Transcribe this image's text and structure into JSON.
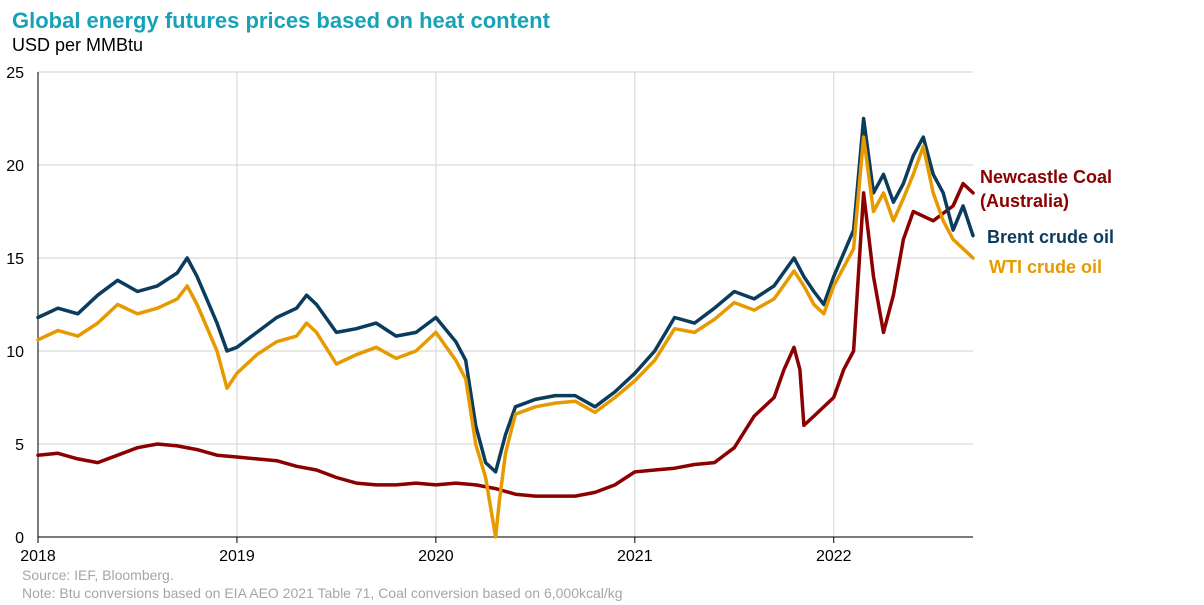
{
  "header": {
    "title": "Global energy futures prices based on heat content",
    "subtitle": "USD per MMBtu"
  },
  "footer": {
    "source": "Source: IEF, Bloomberg.",
    "note": "Note: Btu conversions based on EIA AEO 2021 Table 71, Coal conversion based on 6,000kcal/kg"
  },
  "chart_data": {
    "type": "line",
    "title": "Global energy futures prices based on heat content",
    "ylabel": "USD per MMBtu",
    "xlabel": "",
    "xlim": [
      2018.0,
      2022.7
    ],
    "ylim": [
      0,
      25
    ],
    "x_ticks": [
      "2018",
      "2019",
      "2020",
      "2021",
      "2022"
    ],
    "y_ticks": [
      "0",
      "5",
      "10",
      "15",
      "20",
      "25"
    ],
    "grid": true,
    "legend_position": "right",
    "series": [
      {
        "name": "Newcastle Coal (Australia)",
        "label_lines": [
          "Newcastle Coal",
          "(Australia)"
        ],
        "color": "#8B0000",
        "points": [
          [
            2018.0,
            4.4
          ],
          [
            2018.1,
            4.5
          ],
          [
            2018.2,
            4.2
          ],
          [
            2018.3,
            4.0
          ],
          [
            2018.4,
            4.4
          ],
          [
            2018.5,
            4.8
          ],
          [
            2018.6,
            5.0
          ],
          [
            2018.7,
            4.9
          ],
          [
            2018.8,
            4.7
          ],
          [
            2018.9,
            4.4
          ],
          [
            2019.0,
            4.3
          ],
          [
            2019.1,
            4.2
          ],
          [
            2019.2,
            4.1
          ],
          [
            2019.3,
            3.8
          ],
          [
            2019.4,
            3.6
          ],
          [
            2019.5,
            3.2
          ],
          [
            2019.6,
            2.9
          ],
          [
            2019.7,
            2.8
          ],
          [
            2019.8,
            2.8
          ],
          [
            2019.9,
            2.9
          ],
          [
            2020.0,
            2.8
          ],
          [
            2020.1,
            2.9
          ],
          [
            2020.2,
            2.8
          ],
          [
            2020.3,
            2.6
          ],
          [
            2020.4,
            2.3
          ],
          [
            2020.5,
            2.2
          ],
          [
            2020.6,
            2.2
          ],
          [
            2020.7,
            2.2
          ],
          [
            2020.8,
            2.4
          ],
          [
            2020.9,
            2.8
          ],
          [
            2021.0,
            3.5
          ],
          [
            2021.1,
            3.6
          ],
          [
            2021.2,
            3.7
          ],
          [
            2021.3,
            3.9
          ],
          [
            2021.4,
            4.0
          ],
          [
            2021.5,
            4.8
          ],
          [
            2021.6,
            6.5
          ],
          [
            2021.7,
            7.5
          ],
          [
            2021.75,
            9.0
          ],
          [
            2021.8,
            10.2
          ],
          [
            2021.83,
            9.0
          ],
          [
            2021.85,
            6.0
          ],
          [
            2021.9,
            6.5
          ],
          [
            2022.0,
            7.5
          ],
          [
            2022.05,
            9.0
          ],
          [
            2022.1,
            10.0
          ],
          [
            2022.15,
            18.5
          ],
          [
            2022.2,
            14.0
          ],
          [
            2022.25,
            11.0
          ],
          [
            2022.3,
            13.0
          ],
          [
            2022.35,
            16.0
          ],
          [
            2022.4,
            17.5
          ],
          [
            2022.5,
            17.0
          ],
          [
            2022.6,
            17.8
          ],
          [
            2022.65,
            19.0
          ],
          [
            2022.7,
            18.5
          ]
        ]
      },
      {
        "name": "Brent crude oil",
        "label_lines": [
          "Brent crude oil"
        ],
        "color": "#0B3C5D",
        "points": [
          [
            2018.0,
            11.8
          ],
          [
            2018.1,
            12.3
          ],
          [
            2018.2,
            12.0
          ],
          [
            2018.3,
            13.0
          ],
          [
            2018.4,
            13.8
          ],
          [
            2018.5,
            13.2
          ],
          [
            2018.6,
            13.5
          ],
          [
            2018.7,
            14.2
          ],
          [
            2018.75,
            15.0
          ],
          [
            2018.8,
            14.0
          ],
          [
            2018.9,
            11.5
          ],
          [
            2018.95,
            10.0
          ],
          [
            2019.0,
            10.2
          ],
          [
            2019.1,
            11.0
          ],
          [
            2019.2,
            11.8
          ],
          [
            2019.3,
            12.3
          ],
          [
            2019.35,
            13.0
          ],
          [
            2019.4,
            12.5
          ],
          [
            2019.5,
            11.0
          ],
          [
            2019.6,
            11.2
          ],
          [
            2019.7,
            11.5
          ],
          [
            2019.8,
            10.8
          ],
          [
            2019.9,
            11.0
          ],
          [
            2020.0,
            11.8
          ],
          [
            2020.1,
            10.5
          ],
          [
            2020.15,
            9.5
          ],
          [
            2020.2,
            6.0
          ],
          [
            2020.25,
            4.0
          ],
          [
            2020.3,
            3.5
          ],
          [
            2020.35,
            5.5
          ],
          [
            2020.4,
            7.0
          ],
          [
            2020.5,
            7.4
          ],
          [
            2020.6,
            7.6
          ],
          [
            2020.7,
            7.6
          ],
          [
            2020.8,
            7.0
          ],
          [
            2020.9,
            7.8
          ],
          [
            2021.0,
            8.8
          ],
          [
            2021.1,
            10.0
          ],
          [
            2021.2,
            11.8
          ],
          [
            2021.3,
            11.5
          ],
          [
            2021.4,
            12.3
          ],
          [
            2021.5,
            13.2
          ],
          [
            2021.6,
            12.8
          ],
          [
            2021.7,
            13.5
          ],
          [
            2021.8,
            15.0
          ],
          [
            2021.85,
            14.0
          ],
          [
            2021.9,
            13.2
          ],
          [
            2021.95,
            12.5
          ],
          [
            2022.0,
            14.0
          ],
          [
            2022.1,
            16.5
          ],
          [
            2022.15,
            22.5
          ],
          [
            2022.2,
            18.5
          ],
          [
            2022.25,
            19.5
          ],
          [
            2022.3,
            18.0
          ],
          [
            2022.35,
            19.0
          ],
          [
            2022.4,
            20.5
          ],
          [
            2022.45,
            21.5
          ],
          [
            2022.5,
            19.5
          ],
          [
            2022.55,
            18.5
          ],
          [
            2022.6,
            16.5
          ],
          [
            2022.65,
            17.8
          ],
          [
            2022.7,
            16.2
          ]
        ]
      },
      {
        "name": "WTI crude oil",
        "label_lines": [
          "WTI crude oil"
        ],
        "color": "#E69A00",
        "points": [
          [
            2018.0,
            10.6
          ],
          [
            2018.1,
            11.1
          ],
          [
            2018.2,
            10.8
          ],
          [
            2018.3,
            11.5
          ],
          [
            2018.4,
            12.5
          ],
          [
            2018.5,
            12.0
          ],
          [
            2018.6,
            12.3
          ],
          [
            2018.7,
            12.8
          ],
          [
            2018.75,
            13.5
          ],
          [
            2018.8,
            12.5
          ],
          [
            2018.9,
            10.0
          ],
          [
            2018.95,
            8.0
          ],
          [
            2019.0,
            8.8
          ],
          [
            2019.1,
            9.8
          ],
          [
            2019.2,
            10.5
          ],
          [
            2019.3,
            10.8
          ],
          [
            2019.35,
            11.5
          ],
          [
            2019.4,
            11.0
          ],
          [
            2019.5,
            9.3
          ],
          [
            2019.6,
            9.8
          ],
          [
            2019.7,
            10.2
          ],
          [
            2019.8,
            9.6
          ],
          [
            2019.9,
            10.0
          ],
          [
            2020.0,
            11.0
          ],
          [
            2020.1,
            9.5
          ],
          [
            2020.15,
            8.5
          ],
          [
            2020.2,
            5.0
          ],
          [
            2020.25,
            3.2
          ],
          [
            2020.3,
            0.0
          ],
          [
            2020.32,
            2.0
          ],
          [
            2020.35,
            4.5
          ],
          [
            2020.4,
            6.6
          ],
          [
            2020.5,
            7.0
          ],
          [
            2020.6,
            7.2
          ],
          [
            2020.7,
            7.3
          ],
          [
            2020.8,
            6.7
          ],
          [
            2020.9,
            7.5
          ],
          [
            2021.0,
            8.4
          ],
          [
            2021.1,
            9.5
          ],
          [
            2021.2,
            11.2
          ],
          [
            2021.3,
            11.0
          ],
          [
            2021.4,
            11.7
          ],
          [
            2021.5,
            12.6
          ],
          [
            2021.6,
            12.2
          ],
          [
            2021.7,
            12.8
          ],
          [
            2021.8,
            14.3
          ],
          [
            2021.85,
            13.5
          ],
          [
            2021.9,
            12.5
          ],
          [
            2021.95,
            12.0
          ],
          [
            2022.0,
            13.5
          ],
          [
            2022.1,
            15.5
          ],
          [
            2022.15,
            21.5
          ],
          [
            2022.2,
            17.5
          ],
          [
            2022.25,
            18.5
          ],
          [
            2022.3,
            17.0
          ],
          [
            2022.35,
            18.2
          ],
          [
            2022.4,
            19.5
          ],
          [
            2022.45,
            21.0
          ],
          [
            2022.5,
            18.5
          ],
          [
            2022.55,
            17.0
          ],
          [
            2022.6,
            16.0
          ],
          [
            2022.65,
            15.5
          ],
          [
            2022.7,
            15.0
          ]
        ]
      }
    ]
  }
}
